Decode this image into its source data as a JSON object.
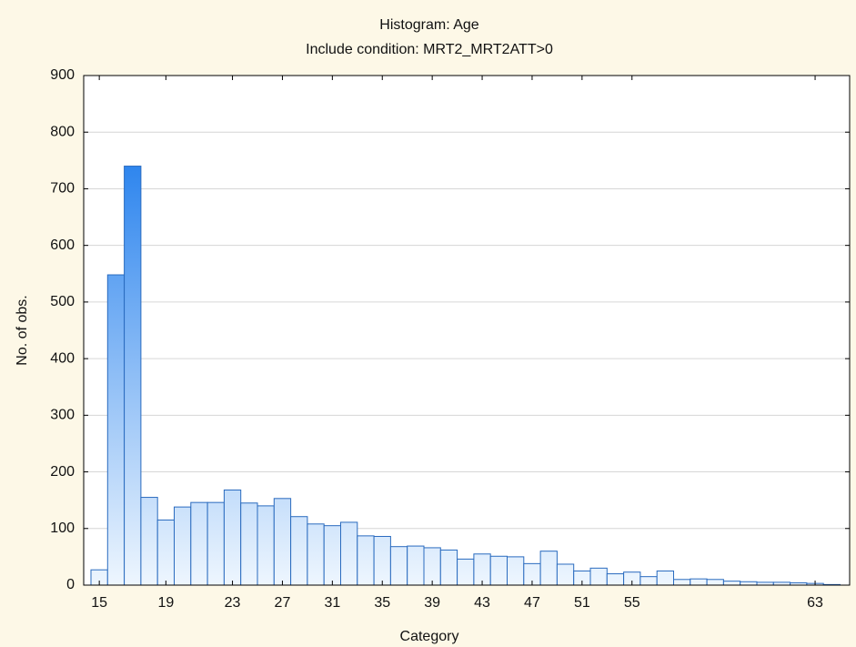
{
  "chart_data": {
    "type": "bar",
    "title": "Histogram: Age",
    "subtitle": "Include condition: MRT2_MRT2ATT>0",
    "x_label": "Category",
    "y_label": "No. of obs.",
    "categories": [
      "15",
      null,
      null,
      null,
      "19",
      null,
      null,
      null,
      "23",
      null,
      null,
      "27",
      null,
      null,
      "31",
      null,
      null,
      "35",
      null,
      null,
      "39",
      null,
      null,
      "43",
      null,
      null,
      "47",
      null,
      null,
      "51",
      null,
      null,
      "55",
      null,
      null,
      null,
      null,
      null,
      null,
      null,
      null,
      null,
      null,
      "63",
      null
    ],
    "values": [
      27,
      548,
      740,
      155,
      115,
      138,
      146,
      146,
      168,
      145,
      140,
      153,
      121,
      108,
      105,
      111,
      87,
      86,
      68,
      69,
      66,
      62,
      46,
      55,
      51,
      50,
      38,
      60,
      37,
      25,
      30,
      20,
      23,
      15,
      25,
      10,
      11,
      10,
      7,
      6,
      5,
      5,
      4,
      3,
      1
    ],
    "color": "#2f86ee",
    "edge_color": "#2a6bbf",
    "ylim": [
      0,
      900
    ],
    "yticks": [
      0,
      100,
      200,
      300,
      400,
      500,
      600,
      700,
      800,
      900
    ],
    "grid": true
  }
}
